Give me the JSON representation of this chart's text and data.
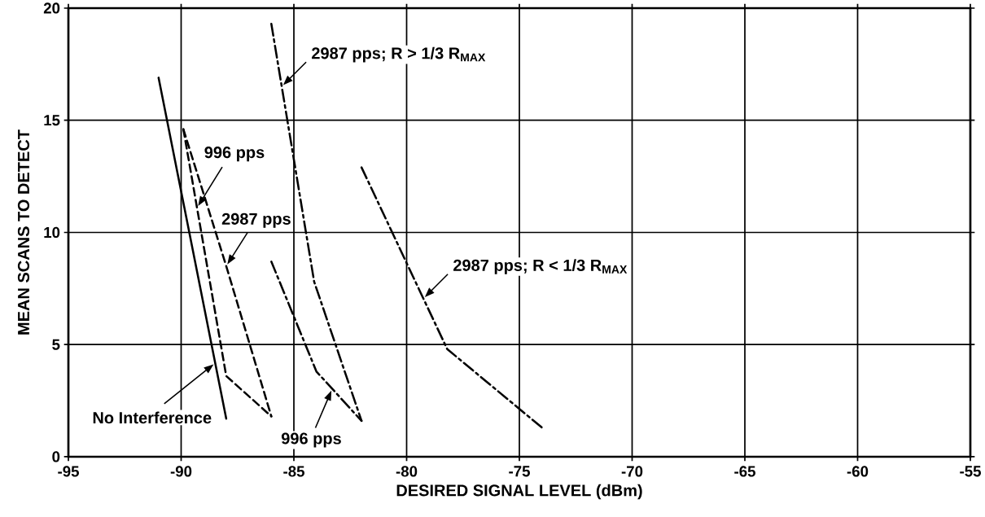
{
  "chart_data": {
    "type": "line",
    "xlabel": "DESIRED SIGNAL LEVEL (dBm)",
    "ylabel": "MEAN SCANS TO DETECT",
    "xlim": [
      -95,
      -55
    ],
    "ylim": [
      0,
      20
    ],
    "xticks": [
      -95,
      -90,
      -85,
      -80,
      -75,
      -70,
      -65,
      -60,
      -55
    ],
    "yticks": [
      0,
      5,
      10,
      15,
      20
    ],
    "grid": true,
    "series": [
      {
        "name": "No Interference",
        "color": "#000000",
        "line_style": "solid",
        "x": [
          -91,
          -88
        ],
        "values": [
          16.9,
          1.7
        ]
      },
      {
        "name": "996 pps",
        "color": "#000000",
        "line_style": "dashed",
        "x": [
          -89.9,
          -88,
          -86
        ],
        "values": [
          14.6,
          3.6,
          1.8
        ]
      },
      {
        "name": "2987 pps",
        "color": "#000000",
        "line_style": "dashed",
        "x": [
          -89.9,
          -88,
          -86
        ],
        "values": [
          14.6,
          8.5,
          1.8
        ]
      },
      {
        "name": "2987 pps; R > 1/3 R$_{MAX}$",
        "color": "#000000",
        "line_style": "dashdot",
        "x": [
          -86,
          -84.1,
          -82
        ],
        "values": [
          19.3,
          7.8,
          1.6
        ]
      },
      {
        "name": "996 pps",
        "color": "#000000",
        "line_style": "dashdot",
        "x": [
          -86,
          -84,
          -82
        ],
        "values": [
          8.7,
          3.8,
          1.6
        ]
      },
      {
        "name": "2987 pps; R < 1/3 R$_{MAX}$",
        "color": "#000000",
        "line_style": "dashdot",
        "x": [
          -82,
          -78.2,
          -74
        ],
        "values": [
          12.9,
          4.8,
          1.3
        ]
      }
    ]
  }
}
